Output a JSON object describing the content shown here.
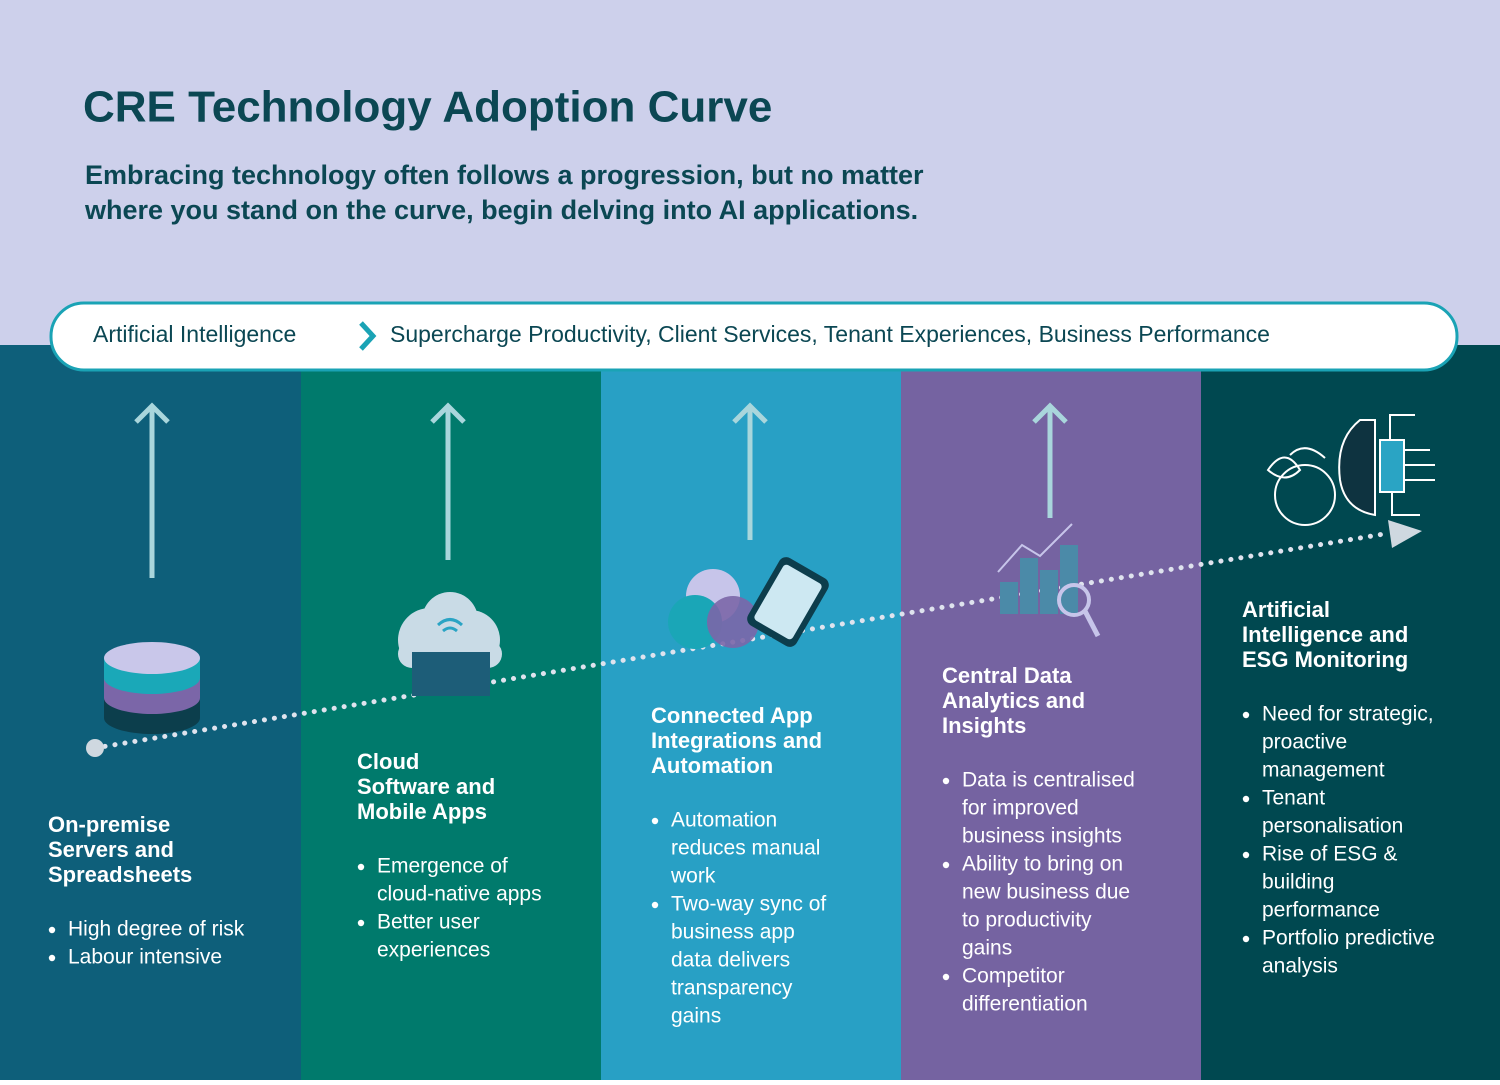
{
  "header": {
    "title": "CRE Technology Adoption Curve",
    "subtitle": [
      "Embracing technology often follows a progression, but no matter",
      "where you stand on the curve, begin delving into AI applications."
    ]
  },
  "banner": {
    "label": "Artificial Intelligence",
    "text": "Supercharge Productivity, Client Services, Tenant Experiences, Business Performance"
  },
  "columns": [
    {
      "title": [
        "On-premise",
        "Servers and",
        "Spreadsheets"
      ],
      "bullets": [
        [
          "High degree of risk"
        ],
        [
          "Labour intensive"
        ]
      ]
    },
    {
      "title": [
        "Cloud",
        "Software and",
        "Mobile Apps"
      ],
      "bullets": [
        [
          "Emergence of",
          "cloud-native apps"
        ],
        [
          "Better user",
          "experiences"
        ]
      ]
    },
    {
      "title": [
        "Connected App",
        "Integrations and",
        "Automation"
      ],
      "bullets": [
        [
          "Automation",
          "reduces manual",
          "work"
        ],
        [
          "Two-way sync of",
          "business app",
          "data delivers",
          "transparency",
          "gains"
        ]
      ]
    },
    {
      "title": [
        "Central Data",
        "Analytics and",
        "Insights"
      ],
      "bullets": [
        [
          "Data is centralised",
          "for improved",
          "business insights"
        ],
        [
          "Ability to bring on",
          "new business due",
          "to productivity",
          "gains"
        ],
        [
          "Competitor",
          "differentiation"
        ]
      ]
    },
    {
      "title": [
        "Artificial",
        "Intelligence and",
        "ESG Monitoring"
      ],
      "bullets": [
        [
          "Need for strategic,",
          "proactive",
          "management"
        ],
        [
          "Tenant",
          "personalisation"
        ],
        [
          "Rise of ESG &",
          "building",
          "performance"
        ],
        [
          "Portfolio predictive",
          "analysis"
        ]
      ]
    }
  ]
}
